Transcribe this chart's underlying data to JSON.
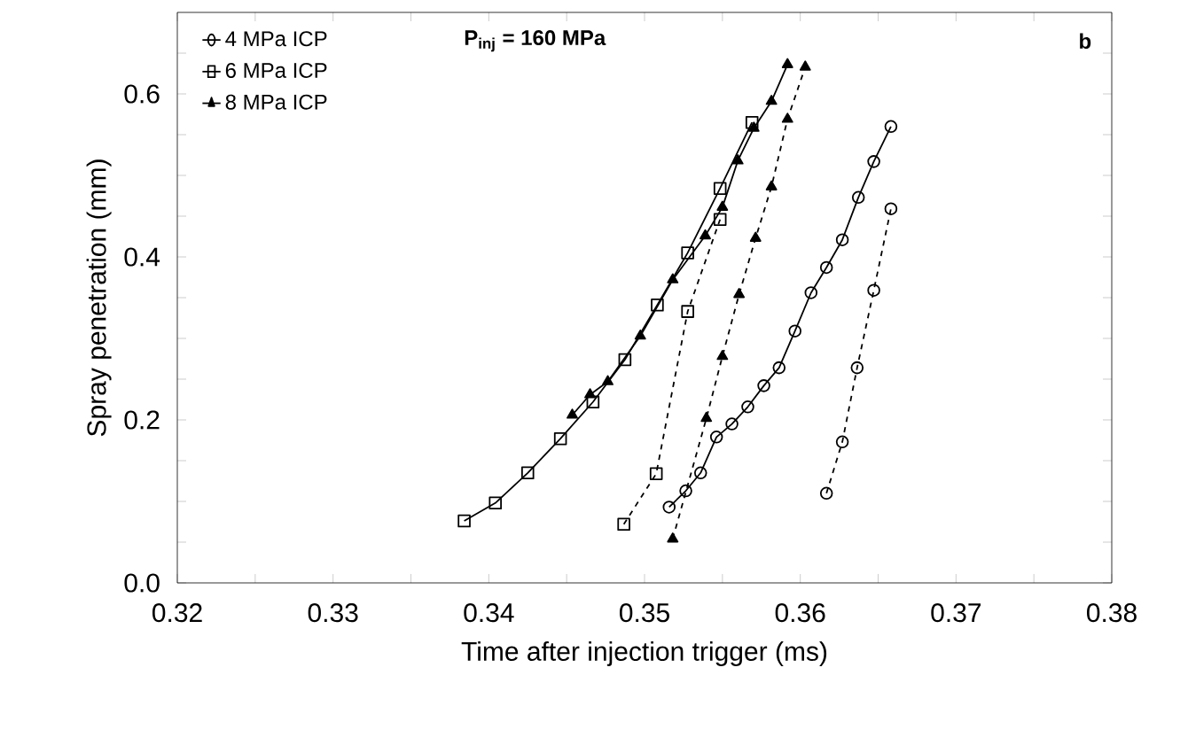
{
  "chart_data": {
    "type": "line",
    "xlabel": "Time after injection trigger (ms)",
    "ylabel": "Spray penetration (mm)",
    "xlim": [
      0.32,
      0.38
    ],
    "ylim": [
      0,
      0.7
    ],
    "xticks": [
      0.32,
      {
        "value": 0.325,
        "label": null
      },
      0.33,
      {
        "value": 0.335,
        "label": null
      },
      0.34,
      {
        "value": 0.345,
        "label": null
      },
      0.35,
      {
        "value": 0.355,
        "label": null
      },
      0.36,
      {
        "value": 0.365,
        "label": null
      },
      0.37,
      {
        "value": 0.375,
        "label": null
      },
      0.38
    ],
    "yticks": [
      {
        "value": 0,
        "label": "0.0"
      },
      {
        "value": 0.05,
        "label": null
      },
      {
        "value": 0.1,
        "label": null
      },
      {
        "value": 0.15,
        "label": null
      },
      0.2,
      {
        "value": 0.25,
        "label": null
      },
      {
        "value": 0.3,
        "label": null
      },
      {
        "value": 0.35,
        "label": null
      },
      0.4,
      {
        "value": 0.45,
        "label": null
      },
      {
        "value": 0.5,
        "label": null
      },
      {
        "value": 0.55,
        "label": null
      },
      0.6,
      {
        "value": 0.65,
        "label": null
      }
    ],
    "grid": false,
    "legend": "top left",
    "annotations": [
      "P$_{inj}$ = 160 MPa",
      "b"
    ],
    "series": [
      {
        "name": "4 MPa ICP",
        "color": "#000000",
        "marker": "circle",
        "line_style": "solid",
        "x": [
          0.35158,
          0.35265,
          0.3536,
          0.35462,
          0.35561,
          0.35663,
          0.35766,
          0.35864,
          0.35966,
          0.36069,
          0.36168,
          0.3627,
          0.36373,
          0.36472,
          0.36582
        ],
        "values": [
          0.093,
          0.113,
          0.135,
          0.179,
          0.195,
          0.216,
          0.242,
          0.264,
          0.309,
          0.356,
          0.387,
          0.421,
          0.473,
          0.517,
          0.56
        ]
      },
      {
        "color": "#000000",
        "marker": "circle",
        "line_style": "dashed",
        "x": [
          0.36168,
          0.3627,
          0.36365,
          0.36472,
          0.36582
        ],
        "values": [
          0.11,
          0.173,
          0.264,
          0.359,
          0.459
        ]
      },
      {
        "name": "6 MPa ICP",
        "color": "#000000",
        "marker": "square",
        "line_style": "solid",
        "x": [
          0.33842,
          0.34042,
          0.3425,
          0.3446,
          0.34669,
          0.34874,
          0.35082,
          0.35277,
          0.35485,
          0.3569
        ],
        "values": [
          0.076,
          0.098,
          0.135,
          0.177,
          0.222,
          0.274,
          0.341,
          0.405,
          0.484,
          0.565
        ]
      },
      {
        "color": "#000000",
        "marker": "square",
        "line_style": "dashed",
        "x": [
          0.34867,
          0.35075,
          0.35277,
          0.35485
        ],
        "values": [
          0.072,
          0.134,
          0.333,
          0.446
        ]
      },
      {
        "name": "8 MPa ICP",
        "color": "#000000",
        "marker": "triangle",
        "line_style": "solid",
        "x": [
          0.34536,
          0.3465,
          0.34764,
          0.34973,
          0.35181,
          0.3539,
          0.355,
          0.35599,
          0.35702,
          0.35815,
          0.35918
        ],
        "values": [
          0.206,
          0.231,
          0.247,
          0.303,
          0.372,
          0.426,
          0.461,
          0.518,
          0.558,
          0.591,
          0.636
        ]
      },
      {
        "color": "#000000",
        "marker": "triangle",
        "line_style": "dashed",
        "x": [
          0.35181,
          0.35397,
          0.355,
          0.35607,
          0.35713,
          0.35815,
          0.35918,
          0.36032
        ],
        "values": [
          0.054,
          0.202,
          0.278,
          0.354,
          0.423,
          0.486,
          0.569,
          0.633
        ]
      }
    ]
  }
}
